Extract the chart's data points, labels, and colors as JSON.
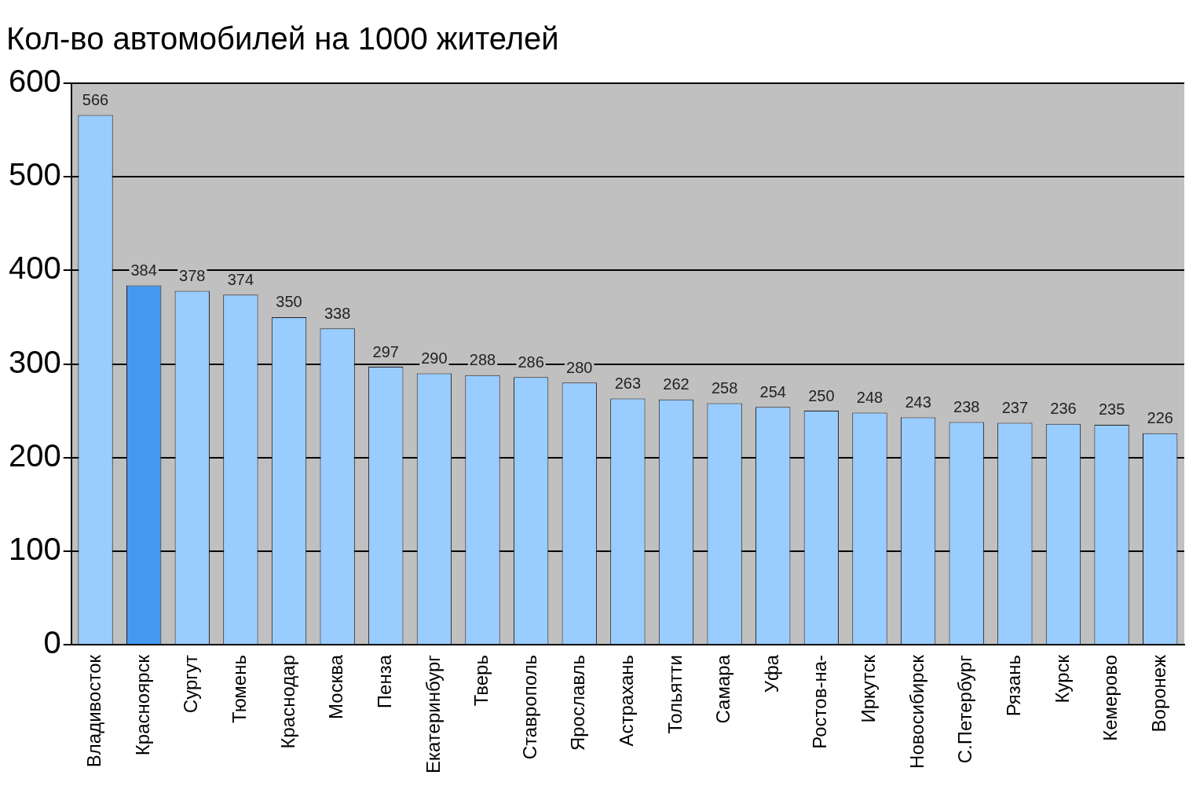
{
  "chart_data": {
    "type": "bar",
    "title": "Кол-во автомобилей на 1000 жителей",
    "categories": [
      "Владивосток",
      "Красноярск",
      "Сургут",
      "Тюмень",
      "Краснодар",
      "Москва",
      "Пенза",
      "Екатеринбург",
      "Тверь",
      "Ставрополь",
      "Ярославль",
      "Астрахань",
      "Тольятти",
      "Самара",
      "Уфа",
      "Ростов-на-",
      "Иркутск",
      "Новосибирск",
      "С.Петербург",
      "Рязань",
      "Курск",
      "Кемерово",
      "Воронеж"
    ],
    "values": [
      566,
      384,
      378,
      374,
      350,
      338,
      297,
      290,
      288,
      286,
      280,
      263,
      262,
      258,
      254,
      250,
      248,
      243,
      238,
      237,
      236,
      235,
      226
    ],
    "colors": [
      "#99ccff",
      "#4499ee",
      "#99ccff",
      "#99ccff",
      "#99ccff",
      "#99ccff",
      "#99ccff",
      "#99ccff",
      "#99ccff",
      "#99ccff",
      "#99ccff",
      "#99ccff",
      "#99ccff",
      "#99ccff",
      "#99ccff",
      "#99ccff",
      "#99ccff",
      "#99ccff",
      "#99ccff",
      "#99ccff",
      "#99ccff",
      "#99ccff",
      "#99ccff"
    ],
    "ylim": [
      0,
      600
    ],
    "yticks": [
      0,
      100,
      200,
      300,
      400,
      500,
      600
    ],
    "grid": "y",
    "data_labels": true,
    "legend": false
  }
}
